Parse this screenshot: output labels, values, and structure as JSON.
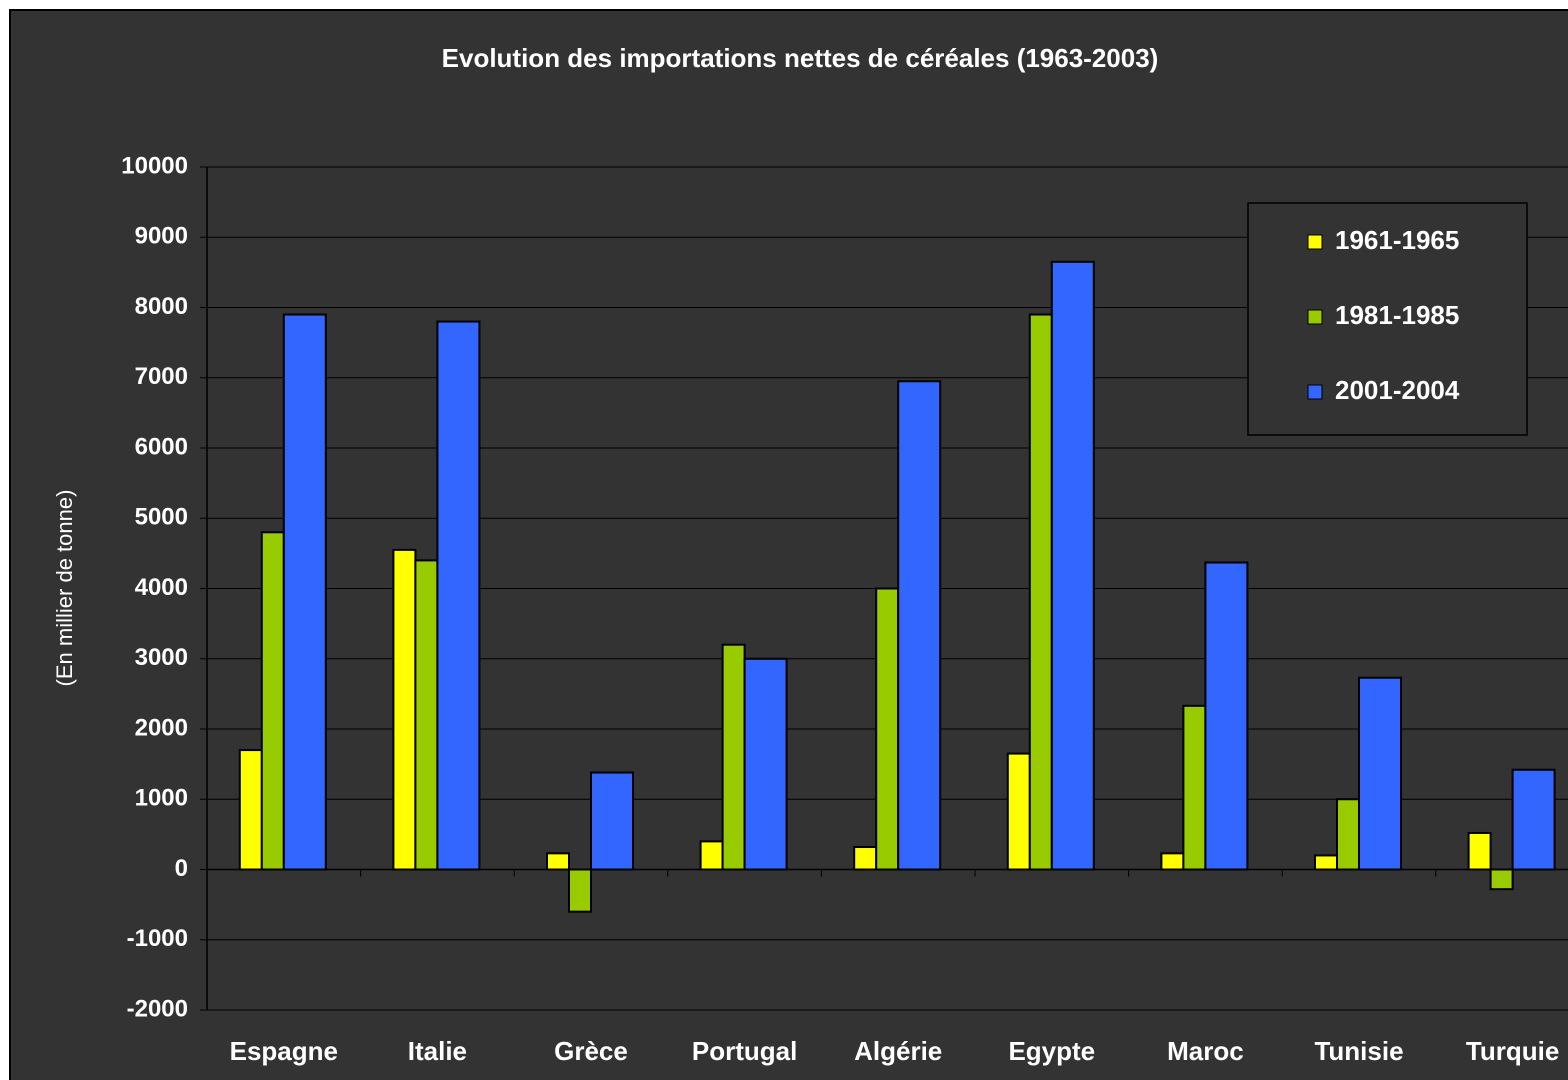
{
  "chart_data": {
    "type": "bar",
    "title": "Evolution des importations nettes de céréales (1963-2003)",
    "y_label": "(En millier de tonne)",
    "categories": [
      "Espagne",
      "Italie",
      "Grèce",
      "Portugal",
      "Algérie",
      "Egypte",
      "Maroc",
      "Tunisie",
      "Turquie"
    ],
    "series": [
      {
        "name": "1961-1965",
        "color": "#ffff00",
        "values": [
          1700,
          4550,
          230,
          400,
          320,
          1650,
          230,
          200,
          520
        ]
      },
      {
        "name": "1981-1985",
        "color": "#99cc00",
        "values": [
          4800,
          4400,
          -600,
          3200,
          4000,
          7900,
          2330,
          1000,
          -280
        ]
      },
      {
        "name": "2001-2004",
        "color": "#3366ff",
        "values": [
          7900,
          7800,
          1380,
          3000,
          6950,
          8650,
          4370,
          2730,
          1420
        ]
      }
    ],
    "ylim": [
      -2000,
      10000
    ],
    "yticks": [
      -2000,
      -1000,
      0,
      1000,
      2000,
      3000,
      4000,
      5000,
      6000,
      7000,
      8000,
      9000,
      10000
    ],
    "grid": true,
    "legend": "upper right"
  }
}
